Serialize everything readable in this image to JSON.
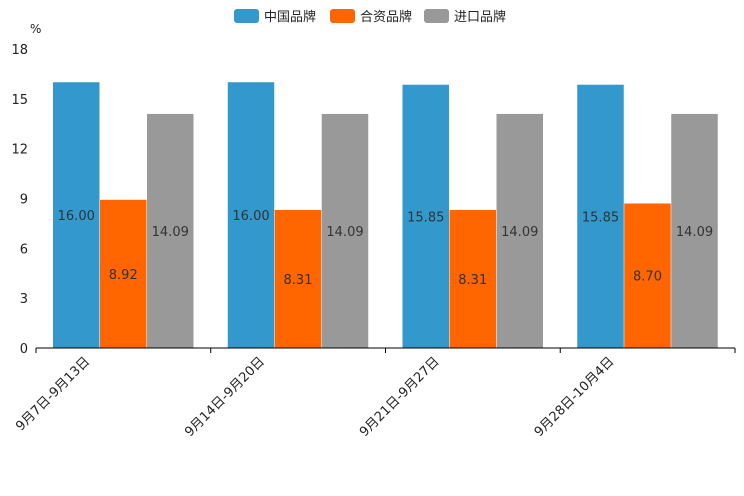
{
  "chart_data": {
    "type": "bar",
    "unit": "%",
    "categories": [
      "9月7日-9月13日",
      "9月14日-9月20日",
      "9月21日-9月27日",
      "9月28日-10月4日"
    ],
    "series": [
      {
        "name": "中国品牌",
        "color": "#3399cc",
        "values": [
          16.0,
          16.0,
          15.85,
          15.85
        ],
        "labels": [
          "16.00",
          "16.00",
          "15.85",
          "15.85"
        ]
      },
      {
        "name": "合资品牌",
        "color": "#ff6600",
        "values": [
          8.92,
          8.31,
          8.31,
          8.7
        ],
        "labels": [
          "8.92",
          "8.31",
          "8.31",
          "8.70"
        ]
      },
      {
        "name": "进口品牌",
        "color": "#999999",
        "values": [
          14.09,
          14.09,
          14.09,
          14.09
        ],
        "labels": [
          "14.09",
          "14.09",
          "14.09",
          "14.09"
        ]
      }
    ],
    "ylim": [
      0,
      18
    ],
    "yticks": [
      0,
      3,
      6,
      9,
      12,
      15,
      18
    ],
    "legend_position": "top-center"
  }
}
